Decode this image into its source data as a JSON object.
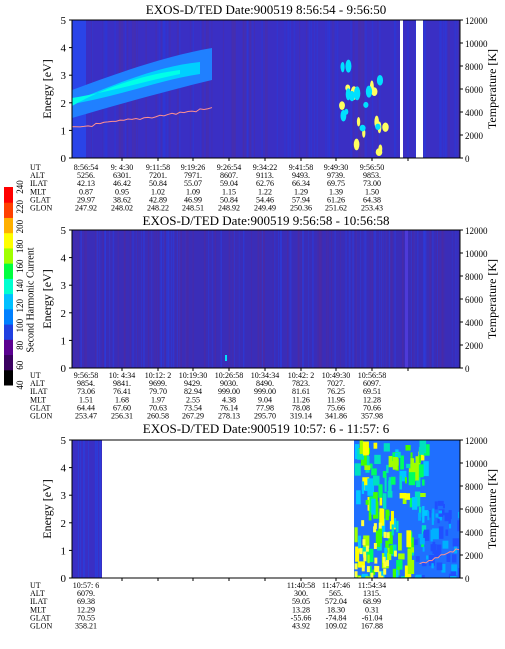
{
  "colorbar": {
    "label": "Second Harmonic Current",
    "ticks": [
      "40",
      "60",
      "80",
      "100",
      "120",
      "140",
      "160",
      "180",
      "200",
      "220",
      "240"
    ]
  },
  "panels": [
    {
      "title": "EXOS-D/TED   Date:900519   8:56:54 - 9:56:50",
      "ylabel": "Energy [eV]",
      "y2label": "Temperature [K]",
      "yticks": [
        "0",
        "1",
        "2",
        "3",
        "4",
        "5"
      ],
      "y2ticks": [
        "0",
        "2000",
        "4000",
        "6000",
        "8000",
        "10000",
        "12000"
      ],
      "rows": [
        {
          "name": "UT",
          "cells": [
            "8:56:54",
            "9: 4:30",
            "9:11:58",
            "9:19:26",
            "9:26:54",
            "9:34:22",
            "9:41:58",
            "9:49:30",
            "9:56:50"
          ]
        },
        {
          "name": "ALT",
          "cells": [
            "5256.",
            "6301.",
            "7201.",
            "7971.",
            "8607.",
            "9113.",
            "9493.",
            "9739.",
            "9853."
          ]
        },
        {
          "name": "ILAT",
          "cells": [
            "42.13",
            "46.42",
            "50.84",
            "55.07",
            "59.04",
            "62.76",
            "66.34",
            "69.75",
            "73.00"
          ]
        },
        {
          "name": "MLT",
          "cells": [
            "0.87",
            "0.95",
            "1.02",
            "1.09",
            "1.15",
            "1.22",
            "1.29",
            "1.39",
            "1.50"
          ]
        },
        {
          "name": "GLAT",
          "cells": [
            "29.97",
            "38.62",
            "42.89",
            "46.99",
            "50.84",
            "54.46",
            "57.94",
            "61.26",
            "64.38"
          ]
        },
        {
          "name": "GLON",
          "cells": [
            "247.92",
            "248.02",
            "248.22",
            "248.51",
            "248.92",
            "249.49",
            "250.36",
            "251.62",
            "253.43"
          ]
        }
      ]
    },
    {
      "title": "EXOS-D/TED   Date:900519   9:56:58 - 10:56:58",
      "ylabel": "Energy [eV]",
      "y2label": "Temperature [K]",
      "yticks": [
        "0",
        "1",
        "2",
        "3",
        "4",
        "5"
      ],
      "y2ticks": [
        "0",
        "2000",
        "4000",
        "6000",
        "8000",
        "10000",
        "12000"
      ],
      "rows": [
        {
          "name": "UT",
          "cells": [
            "9:56:58",
            "10: 4:34",
            "10:12: 2",
            "10:19:30",
            "10:26:58",
            "10:34:34",
            "10:42: 2",
            "10:49:30",
            "10:56:58"
          ]
        },
        {
          "name": "ALT",
          "cells": [
            "9854.",
            "9841.",
            "9699.",
            "9429.",
            "9030.",
            "8490.",
            "7823.",
            "7027.",
            "6097."
          ]
        },
        {
          "name": "ILAT",
          "cells": [
            "73.06",
            "76.41",
            "79.70",
            "82.94",
            "999.00",
            "999.00",
            "81.61",
            "76.25",
            "69.51"
          ]
        },
        {
          "name": "MLT",
          "cells": [
            "1.51",
            "1.68",
            "1.97",
            "2.55",
            "4.38",
            "9.04",
            "11.26",
            "11.96",
            "12.28"
          ]
        },
        {
          "name": "GLAT",
          "cells": [
            "64.44",
            "67.60",
            "70.63",
            "73.54",
            "76.14",
            "77.98",
            "78.08",
            "75.66",
            "70.66"
          ]
        },
        {
          "name": "GLON",
          "cells": [
            "253.47",
            "256.31",
            "260.58",
            "267.29",
            "278.13",
            "295.70",
            "319.14",
            "341.86",
            "357.98"
          ]
        }
      ]
    },
    {
      "title": "EXOS-D/TED   Date:900519   10:57: 6 - 11:57: 6",
      "ylabel": "Energy [eV]",
      "y2label": "Temperature [K]",
      "yticks": [
        "0",
        "1",
        "2",
        "3",
        "4",
        "5"
      ],
      "y2ticks": [
        "0",
        "2000",
        "4000",
        "6000",
        "8000",
        "10000",
        "12000"
      ],
      "rows": [
        {
          "name": "UT",
          "cells": [
            "10:57: 6",
            "",
            "",
            "",
            "",
            "",
            "11:40:58",
            "11:47:46",
            "11:54:34"
          ]
        },
        {
          "name": "ALT",
          "cells": [
            "6079.",
            "",
            "",
            "",
            "",
            "",
            "300.",
            "565.",
            "1315."
          ]
        },
        {
          "name": "ILAT",
          "cells": [
            "69.38",
            "",
            "",
            "",
            "",
            "",
            "59.05",
            "572.04",
            "68.99"
          ]
        },
        {
          "name": "MLT",
          "cells": [
            "12.29",
            "",
            "",
            "",
            "",
            "",
            "13.28",
            "18.30",
            "0.31"
          ]
        },
        {
          "name": "GLAT",
          "cells": [
            "70.55",
            "",
            "",
            "",
            "",
            "",
            "-55.66",
            "-74.84",
            "-61.04"
          ]
        },
        {
          "name": "GLON",
          "cells": [
            "358.21",
            "",
            "",
            "",
            "",
            "",
            "43.92",
            "109.02",
            "167.88"
          ]
        }
      ]
    }
  ],
  "chart_data": [
    {
      "type": "heatmap",
      "title": "EXOS-D/TED   Date:900519   8:56:54 - 9:56:50",
      "xlabel": "",
      "ylabel": "Energy [eV]",
      "y2label": "Temperature [K]",
      "ylim": [
        0,
        5
      ],
      "y2lim": [
        0,
        12000
      ],
      "x_ticks": [
        "8:56:54",
        "9: 4:30",
        "9:11:58",
        "9:19:26",
        "9:26:54",
        "9:34:22",
        "9:41:58",
        "9:49:30",
        "9:56:50"
      ],
      "colorscale_label": "Second Harmonic Current",
      "colorscale_range": [
        40,
        240
      ],
      "features": [
        {
          "x": [
            "8:56:54",
            "9:19:26"
          ],
          "energy": [
            1.5,
            3.0
          ],
          "level": "high"
        },
        {
          "x": [
            "9:41:58",
            "9:49:30"
          ],
          "energy": [
            0.8,
            4.6
          ],
          "level": "scattered-high"
        }
      ]
    },
    {
      "type": "heatmap",
      "title": "EXOS-D/TED   Date:900519   9:56:58 - 10:56:58",
      "xlabel": "",
      "ylabel": "Energy [eV]",
      "y2label": "Temperature [K]",
      "ylim": [
        0,
        5
      ],
      "y2lim": [
        0,
        12000
      ],
      "x_ticks": [
        "9:56:58",
        "10: 4:34",
        "10:12: 2",
        "10:19:30",
        "10:26:58",
        "10:34:34",
        "10:42: 2",
        "10:49:30",
        "10:56:58"
      ],
      "colorscale_label": "Second Harmonic Current",
      "colorscale_range": [
        40,
        240
      ],
      "features": [
        {
          "x": [
            "9:56:58",
            "10:56:58"
          ],
          "energy": [
            0,
            5
          ],
          "level": "low"
        }
      ]
    },
    {
      "type": "heatmap",
      "title": "EXOS-D/TED   Date:900519   10:57: 6 - 11:57: 6",
      "xlabel": "",
      "ylabel": "Energy [eV]",
      "y2label": "Temperature [K]",
      "ylim": [
        0,
        5
      ],
      "y2lim": [
        0,
        12000
      ],
      "x_ticks": [
        "10:57: 6",
        "11:40:58",
        "11:47:46",
        "11:54:34"
      ],
      "colorscale_label": "Second Harmonic Current",
      "colorscale_range": [
        40,
        240
      ],
      "features": [
        {
          "x": [
            "10:57: 6",
            "10:59:30"
          ],
          "energy": [
            0,
            5
          ],
          "level": "low"
        },
        {
          "x": [
            "11:40:58",
            "11:50:00"
          ],
          "energy": [
            0,
            5
          ],
          "level": "very-high"
        },
        {
          "x": [
            "11:50:00",
            "11:57: 6"
          ],
          "energy": [
            0,
            5
          ],
          "level": "medium"
        }
      ]
    }
  ]
}
